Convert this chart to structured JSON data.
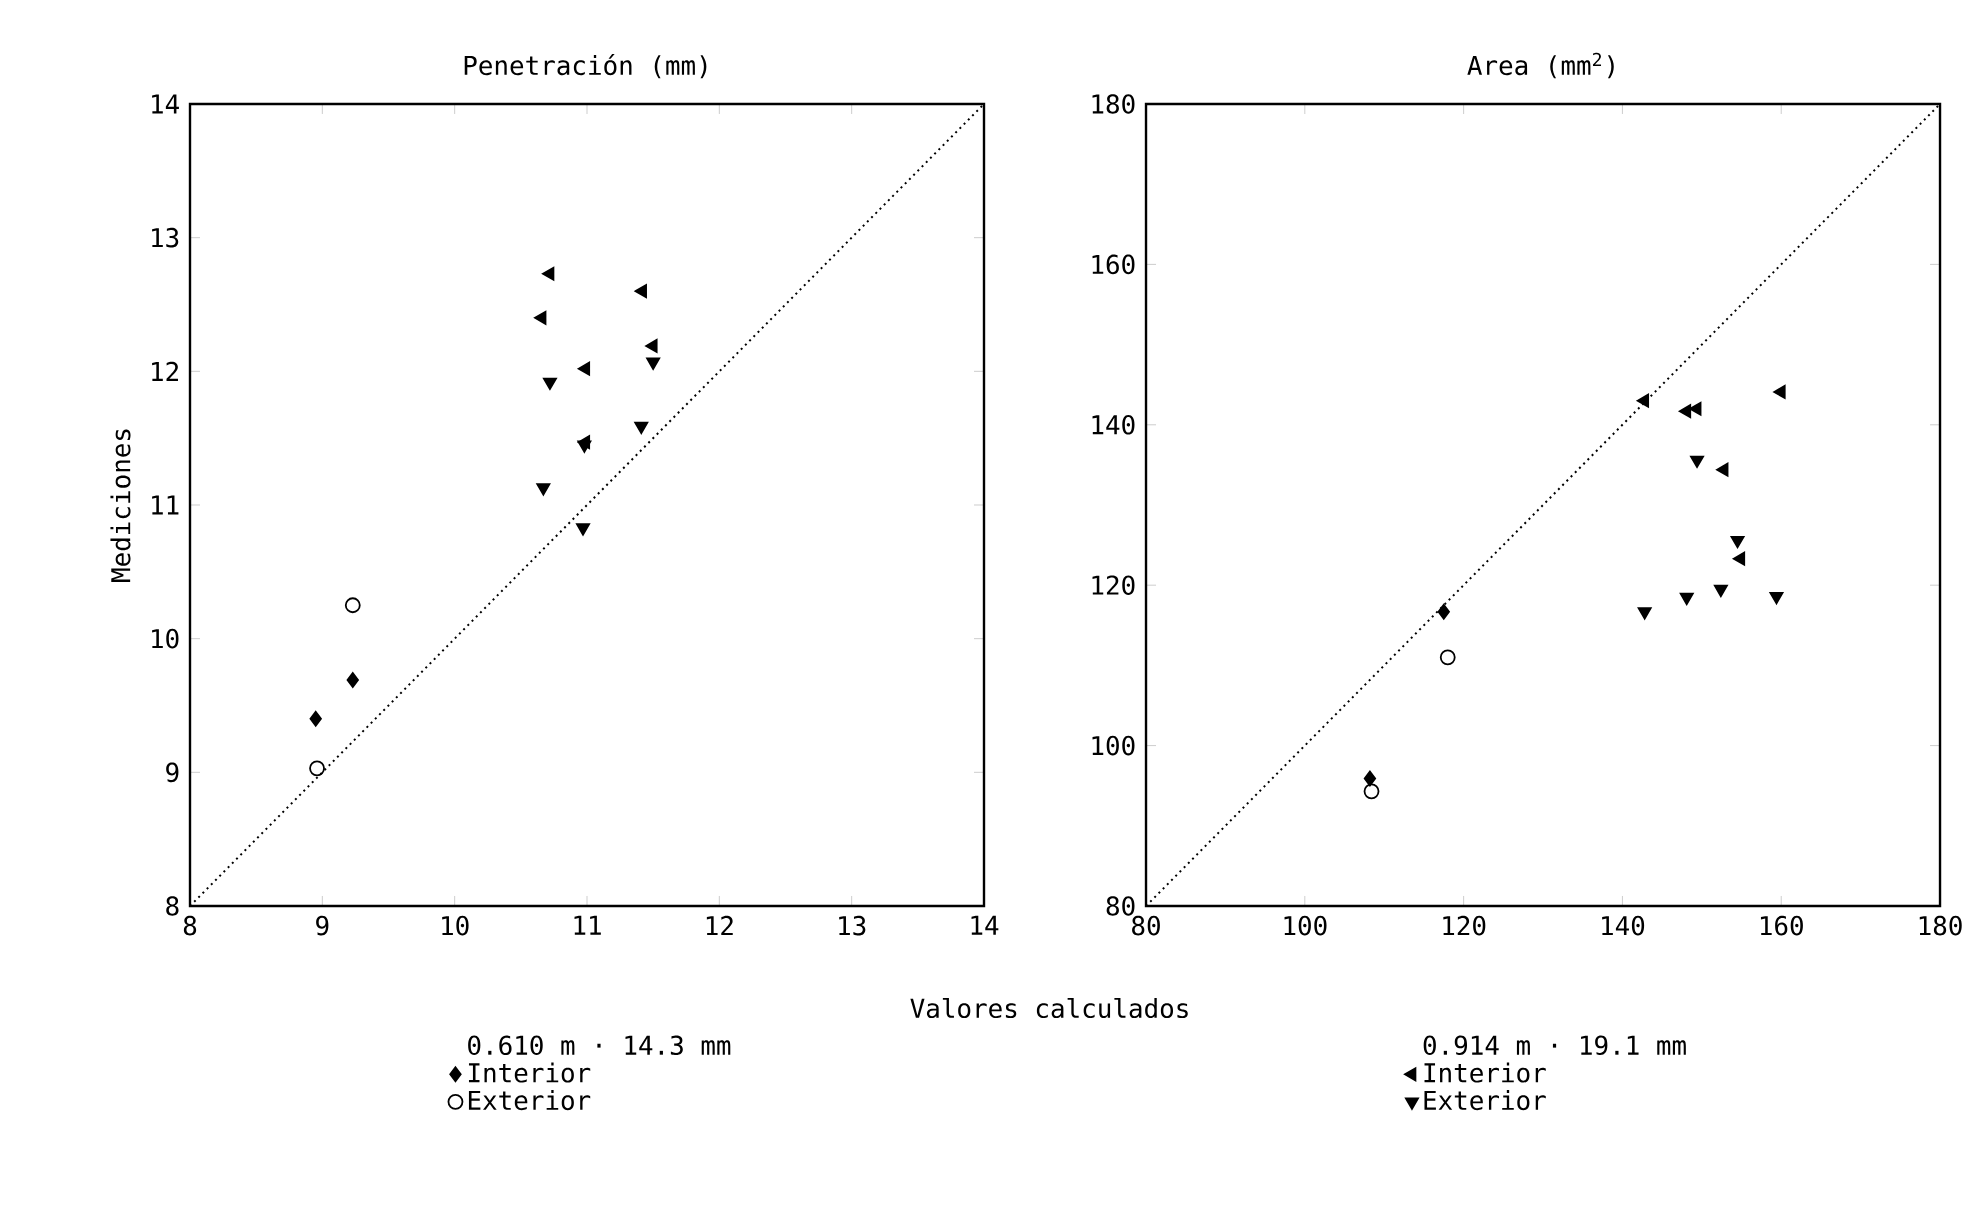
{
  "chart_data": [
    {
      "type": "scatter",
      "title": "Penetración (mm)",
      "xlabel": "Valores calculados",
      "ylabel": "Mediciones",
      "legend_title": "0.610 m · 14.3 mm",
      "legend": "bottom",
      "grid": false,
      "xlim": [
        8,
        14
      ],
      "ylim": [
        8,
        14
      ],
      "xticks": [
        8,
        9,
        10,
        11,
        12,
        13,
        14
      ],
      "yticks": [
        8,
        9,
        10,
        11,
        12,
        13,
        14
      ],
      "series": [
        {
          "name": "Interior",
          "color": "#000000",
          "marker": "diamond",
          "x": [
            8.95,
            9.23
          ],
          "values": [
            9.4,
            9.69
          ]
        },
        {
          "name": "Exterior",
          "color": "#000000",
          "marker": "circle",
          "x": [
            8.96,
            9.23
          ],
          "values": [
            9.03,
            10.25
          ]
        },
        {
          "color": "#000000",
          "marker": "triangle-left",
          "x": [
            10.72,
            10.66,
            10.99,
            11.42,
            11.5,
            10.99
          ],
          "values": [
            12.73,
            12.4,
            12.02,
            12.6,
            12.19,
            11.47
          ]
        },
        {
          "color": "#000000",
          "marker": "triangle-down",
          "x": [
            10.72,
            10.67,
            10.97,
            11.41,
            11.5,
            10.98
          ],
          "values": [
            11.92,
            11.13,
            10.83,
            11.59,
            12.07,
            11.45
          ]
        },
        {
          "type": "line",
          "color": "#000000",
          "marker": "none",
          "line_style": "dotted",
          "x": [
            8,
            14
          ],
          "values": [
            8,
            14
          ]
        }
      ]
    },
    {
      "type": "scatter",
      "title": "Area (mm$^{2}$)",
      "legend_title": "0.914 m · 19.1 mm",
      "legend": "bottom",
      "grid": false,
      "xlim": [
        80,
        180
      ],
      "ylim": [
        80,
        180
      ],
      "xticks": [
        80,
        100,
        120,
        140,
        160,
        180
      ],
      "yticks": [
        80,
        100,
        120,
        140,
        160,
        180
      ],
      "series": [
        {
          "color": "#000000",
          "marker": "diamond",
          "x": [
            117.5,
            108.2
          ],
          "values": [
            116.7,
            95.9
          ]
        },
        {
          "color": "#000000",
          "marker": "circle",
          "x": [
            118.0,
            108.4
          ],
          "values": [
            111.0,
            94.3
          ]
        },
        {
          "name": "Interior",
          "color": "#000000",
          "marker": "triangle-left",
          "x": [
            142.8,
            148.1,
            149.4,
            160,
            152.8,
            154.9
          ],
          "values": [
            143.0,
            141.7,
            142.0,
            144.1,
            134.4,
            123.3
          ]
        },
        {
          "name": "Exterior",
          "color": "#000000",
          "marker": "triangle-down",
          "x": [
            142.8,
            148.1,
            149.4,
            152.4,
            154.5,
            159.4
          ],
          "values": [
            116.7,
            118.5,
            135.6,
            119.5,
            125.6,
            118.6
          ]
        },
        {
          "type": "line",
          "color": "#000000",
          "marker": "none",
          "line_style": "dotted",
          "x": [
            80,
            180
          ],
          "values": [
            80,
            180
          ]
        }
      ]
    }
  ]
}
